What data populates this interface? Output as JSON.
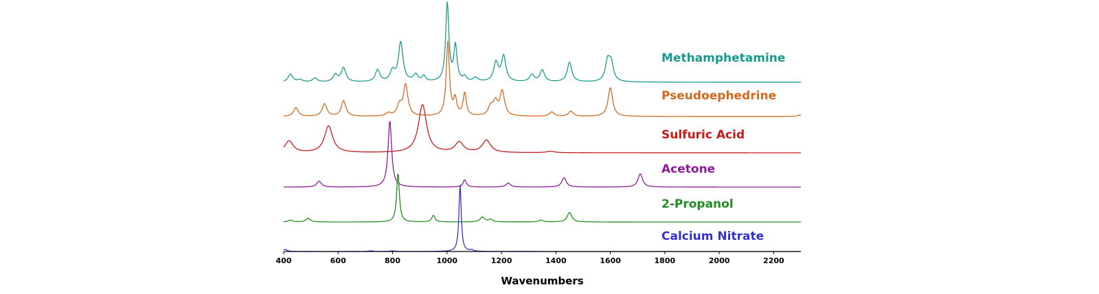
{
  "chart_data": {
    "type": "line",
    "xlabel": "Wavenumbers",
    "ylabel": "",
    "xlim": [
      400,
      2300
    ],
    "x_ticks": [
      400,
      600,
      800,
      1000,
      1200,
      1400,
      1600,
      1800,
      2000,
      2200
    ],
    "grid": false,
    "legend": "inline labels at right of each trace",
    "stacked_offset": true,
    "series": [
      {
        "name": "Methamphetamine",
        "color": "#1a9a8e",
        "peaks": [
          [
            425,
            0.1
          ],
          [
            460,
            0.03
          ],
          [
            515,
            0.05
          ],
          [
            590,
            0.09
          ],
          [
            620,
            0.18
          ],
          [
            745,
            0.15
          ],
          [
            800,
            0.13
          ],
          [
            830,
            0.5
          ],
          [
            885,
            0.09
          ],
          [
            915,
            0.07
          ],
          [
            1001,
            1.0
          ],
          [
            1031,
            0.45
          ],
          [
            1065,
            0.06
          ],
          [
            1105,
            0.05
          ],
          [
            1180,
            0.24
          ],
          [
            1208,
            0.32
          ],
          [
            1312,
            0.09
          ],
          [
            1350,
            0.15
          ],
          [
            1450,
            0.25
          ],
          [
            1590,
            0.25
          ],
          [
            1603,
            0.22
          ]
        ]
      },
      {
        "name": "Pseudoephedrine",
        "color": "#d2691e",
        "peaks": [
          [
            445,
            0.12
          ],
          [
            550,
            0.17
          ],
          [
            620,
            0.21
          ],
          [
            785,
            0.04
          ],
          [
            825,
            0.14
          ],
          [
            848,
            0.42
          ],
          [
            1003,
            1.0
          ],
          [
            1030,
            0.22
          ],
          [
            1065,
            0.31
          ],
          [
            1160,
            0.12
          ],
          [
            1178,
            0.18
          ],
          [
            1203,
            0.33
          ],
          [
            1385,
            0.06
          ],
          [
            1455,
            0.07
          ],
          [
            1600,
            0.39
          ],
          [
            2295,
            0.02
          ]
        ]
      },
      {
        "name": "Sulfuric Acid",
        "color": "#c41a1a",
        "peaks": [
          [
            420,
            0.17
          ],
          [
            565,
            0.39
          ],
          [
            910,
            0.7
          ],
          [
            1045,
            0.15
          ],
          [
            1145,
            0.18
          ],
          [
            1380,
            0.02
          ]
        ]
      },
      {
        "name": "Acetone",
        "color": "#8e1a9a",
        "peaks": [
          [
            530,
            0.09
          ],
          [
            790,
            1.0
          ],
          [
            1065,
            0.11
          ],
          [
            1225,
            0.06
          ],
          [
            1430,
            0.14
          ],
          [
            1710,
            0.2
          ]
        ]
      },
      {
        "name": "2-Propanol",
        "color": "#228b22",
        "peaks": [
          [
            425,
            0.03
          ],
          [
            490,
            0.06
          ],
          [
            820,
            0.82
          ],
          [
            950,
            0.11
          ],
          [
            1130,
            0.08
          ],
          [
            1160,
            0.04
          ],
          [
            1345,
            0.03
          ],
          [
            1450,
            0.16
          ]
        ]
      },
      {
        "name": "Calcium Nitrate",
        "color": "#3333cc",
        "peaks": [
          [
            405,
            0.03
          ],
          [
            720,
            0.01
          ],
          [
            800,
            0.01
          ],
          [
            1048,
            1.0
          ],
          [
            1090,
            0.02
          ]
        ]
      }
    ]
  }
}
